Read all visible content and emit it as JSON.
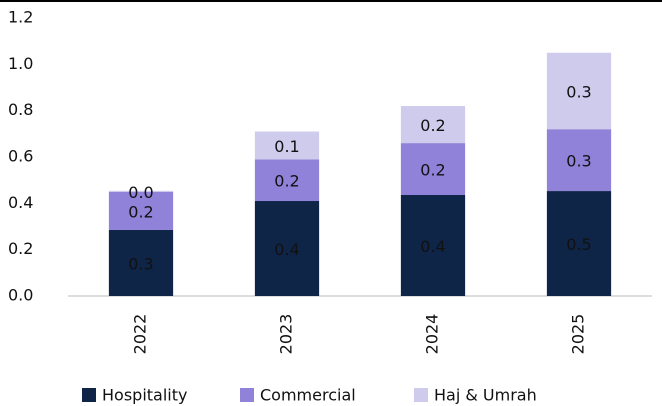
{
  "chart_data": {
    "type": "stacked_bar",
    "categories": [
      "2022",
      "2023",
      "2024",
      "2025"
    ],
    "series": [
      {
        "name": "Hospitality",
        "color": "#0f2548",
        "values": [
          0.285,
          0.41,
          0.436,
          0.453
        ],
        "value_labels": [
          "0.3",
          "0.4",
          "0.4",
          "0.5"
        ]
      },
      {
        "name": "Commercial",
        "color": "#8f82d8",
        "values": [
          0.165,
          0.18,
          0.224,
          0.267
        ],
        "value_labels": [
          "0.2",
          "0.2",
          "0.2",
          "0.3"
        ]
      },
      {
        "name": "Haj & Umrah",
        "color": "#cfcbec",
        "values": [
          0.004,
          0.12,
          0.16,
          0.33
        ],
        "value_labels": [
          "0.0",
          "0.1",
          "0.2",
          "0.3"
        ]
      }
    ],
    "ylim": [
      0,
      1.2
    ],
    "yticks": [
      {
        "value": 0,
        "label": "0.0"
      },
      0.2,
      0.4,
      0.6,
      0.8,
      {
        "value": 1,
        "label": "1.0"
      },
      1.2
    ],
    "legend": "bottom"
  }
}
